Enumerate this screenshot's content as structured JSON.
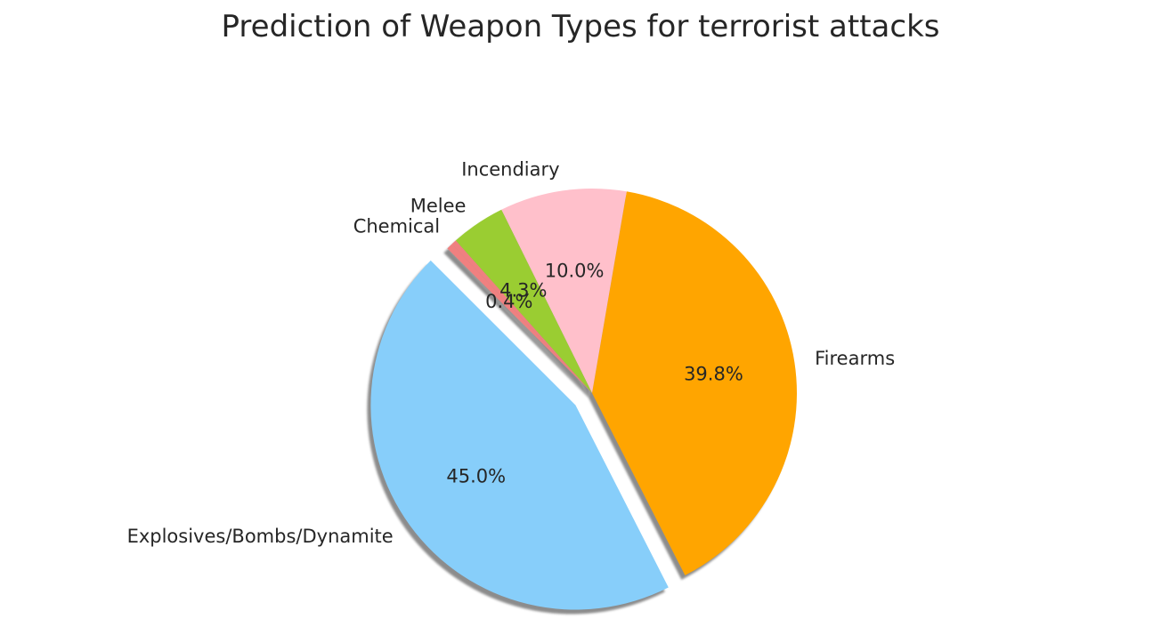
{
  "chart_data": {
    "type": "pie",
    "title": "Prediction of Weapon Types for terrorist attacks",
    "start_angle_deg": 135,
    "direction": "counterclockwise",
    "shadow": true,
    "slices": [
      {
        "label": "Explosives/Bombs/Dynamite",
        "value": 45.0,
        "pct_label": "45.0%",
        "color": "#87CEFA",
        "explode": 0.1
      },
      {
        "label": "Firearms",
        "value": 39.8,
        "pct_label": "39.8%",
        "color": "#FFA500",
        "explode": 0
      },
      {
        "label": "Incendiary",
        "value": 10.0,
        "pct_label": "10.0%",
        "color": "#FFC0CB",
        "explode": 0
      },
      {
        "label": "Melee",
        "value": 4.3,
        "pct_label": "4.3%",
        "color": "#9ACD32",
        "explode": 0
      },
      {
        "label": "Chemical",
        "value": 0.4,
        "pct_label": "0.4%",
        "color": "#F08080",
        "explode": 0
      },
      {
        "label": "",
        "value": 0.5,
        "pct_label": "",
        "color": "#F08080",
        "explode": 0
      }
    ]
  }
}
